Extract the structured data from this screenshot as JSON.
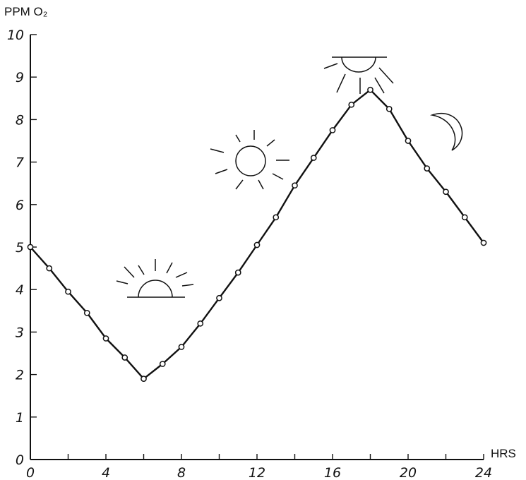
{
  "chart_data": {
    "type": "line",
    "title": "",
    "xlabel": "HRS",
    "ylabel": "PPM O₂",
    "xlim": [
      0,
      24
    ],
    "ylim": [
      0,
      10
    ],
    "x_ticks": [
      0,
      4,
      8,
      12,
      16,
      20,
      24
    ],
    "y_ticks": [
      0,
      1,
      2,
      3,
      4,
      5,
      6,
      7,
      8,
      9,
      10
    ],
    "grid": false,
    "series": [
      {
        "x": [
          0,
          1,
          2,
          3,
          4,
          5,
          6,
          7,
          8,
          9,
          10,
          11,
          12,
          13,
          14,
          15,
          16,
          17,
          18,
          19,
          20,
          21,
          22,
          23,
          24
        ],
        "y": [
          5.0,
          4.5,
          3.95,
          3.45,
          2.85,
          2.4,
          1.9,
          2.25,
          2.65,
          3.2,
          3.8,
          4.4,
          5.05,
          5.7,
          6.45,
          7.1,
          7.75,
          8.35,
          8.7,
          8.25,
          7.5,
          6.85,
          6.3,
          5.7,
          5.1
        ]
      }
    ],
    "icons": [
      "sunrise-icon",
      "sun-icon",
      "noon-sun-icon",
      "moon-icon"
    ]
  }
}
